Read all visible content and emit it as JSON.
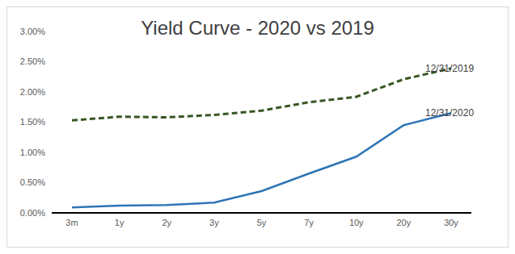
{
  "chart_data": {
    "type": "line",
    "title": "Yield Curve - 2020 vs 2019",
    "categories": [
      "3m",
      "1y",
      "2y",
      "3y",
      "5y",
      "7y",
      "10y",
      "20y",
      "30y"
    ],
    "series": [
      {
        "name": "12/31/2019",
        "color": "#375623",
        "line_style": "dashed",
        "marker": "none",
        "values": [
          1.53,
          1.59,
          1.58,
          1.62,
          1.69,
          1.83,
          1.92,
          2.21,
          2.39
        ]
      },
      {
        "name": "12/31/2020",
        "color": "#2e75b6",
        "line_style": "solid",
        "marker": "none",
        "values": [
          0.09,
          0.12,
          0.13,
          0.17,
          0.36,
          0.65,
          0.93,
          1.45,
          1.65
        ]
      }
    ],
    "ylim": [
      0,
      3
    ],
    "yticks": [
      {
        "value": 0,
        "label": "0.00%"
      },
      {
        "value": 0.5,
        "label": "0.50%"
      },
      {
        "value": 1,
        "label": "1.00%"
      },
      {
        "value": 1.5,
        "label": "1.50%"
      },
      {
        "value": 2,
        "label": "2.00%"
      },
      {
        "value": 2.5,
        "label": "2.50%"
      },
      {
        "value": 3,
        "label": "3.00%"
      }
    ],
    "grid": false
  }
}
